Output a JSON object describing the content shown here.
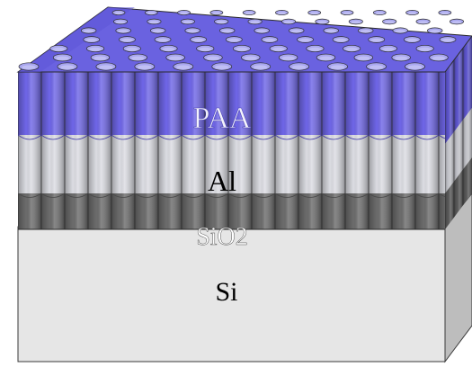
{
  "labels": {
    "paa": "PAA",
    "al": "Al",
    "sio2": "SiO2",
    "si": "Si"
  },
  "colors": {
    "paa_front": "#6f66e8",
    "paa_top": "#6a62e0",
    "pore": "#a9a7ef",
    "al_front": "#dcdde3",
    "sio2_front": "#6c6c6c",
    "si_front": "#e6e6e6",
    "si_side": "#bdbdbd",
    "si_top": "#cfcfcf",
    "outline": "#2b2b2b"
  }
}
